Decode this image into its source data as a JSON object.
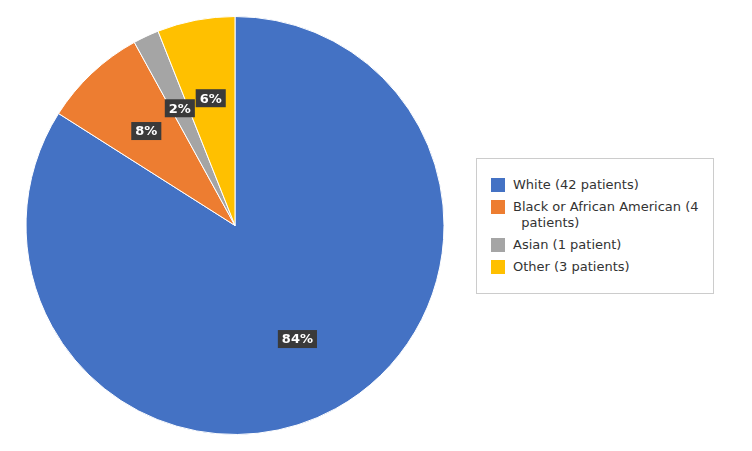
{
  "chart_data": {
    "type": "pie",
    "categories": [
      "White (42 patients)",
      "Black or African American (4\n  patients)",
      "Asian (1 patient)",
      "Other (3 patients)"
    ],
    "values": [
      84,
      8,
      2,
      6
    ],
    "value_labels": [
      "84%",
      "8%",
      "2%",
      "6%"
    ],
    "colors": [
      "#4472C4",
      "#ED7D31",
      "#A5A5A5",
      "#FFC000"
    ],
    "data_labels": true,
    "legend": "right"
  }
}
